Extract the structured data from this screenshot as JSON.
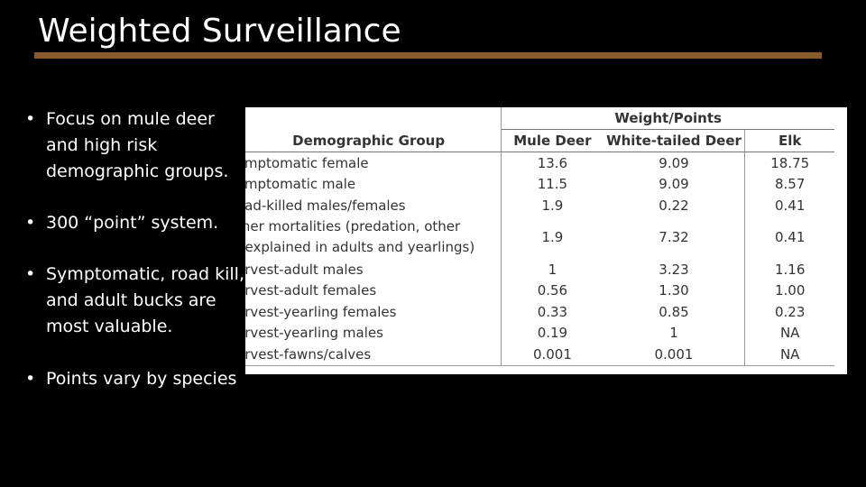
{
  "slide": {
    "title": "Weighted Surveillance",
    "accent_color": "#8a5a2b",
    "bullets": [
      "Focus on mule deer and high risk demographic groups.",
      "300 “point” system.",
      "Symptomatic, road kill, and adult bucks are most valuable.",
      "Points vary by species"
    ]
  },
  "table": {
    "group_header": "Weight/Points",
    "columns": [
      "Demographic Group",
      "Mule Deer",
      "White-tailed Deer",
      "Elk"
    ],
    "rows": [
      {
        "group": "ymptomatic female",
        "mule": "13.6",
        "wt": "9.09",
        "elk": "18.75"
      },
      {
        "group": "ymptomatic male",
        "mule": "11.5",
        "wt": "9.09",
        "elk": "8.57"
      },
      {
        "group": "oad-killed males/females",
        "mule": "1.9",
        "wt": "0.22",
        "elk": "0.41"
      },
      {
        "group": "ther mortalities (predation, other\nnexplained in adults and yearlings)",
        "mule": "1.9",
        "wt": "7.32",
        "elk": "0.41"
      },
      {
        "group": "arvest-adult males",
        "mule": "1",
        "wt": "3.23",
        "elk": "1.16"
      },
      {
        "group": "arvest-adult females",
        "mule": "0.56",
        "wt": "1.30",
        "elk": "1.00"
      },
      {
        "group": "arvest-yearling females",
        "mule": "0.33",
        "wt": "0.85",
        "elk": "0.23"
      },
      {
        "group": "arvest-yearling males",
        "mule": "0.19",
        "wt": "1",
        "elk": "NA"
      },
      {
        "group": "arvest-fawns/calves",
        "mule": "0.001",
        "wt": "0.001",
        "elk": "NA"
      }
    ]
  }
}
